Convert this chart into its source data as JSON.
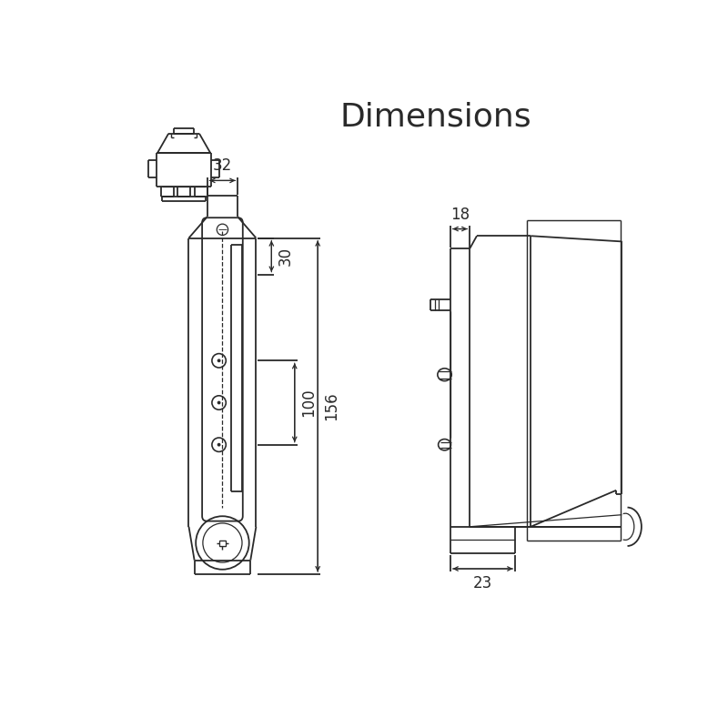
{
  "title": "Dimensions",
  "title_fontsize": 26,
  "bg_color": "#ffffff",
  "line_color": "#2a2a2a",
  "line_width": 1.3,
  "dim_fontsize": 12,
  "dims": {
    "width_32": "32",
    "height_30": "30",
    "height_100": "100",
    "height_156": "156",
    "side_18": "18",
    "side_23": "23"
  }
}
